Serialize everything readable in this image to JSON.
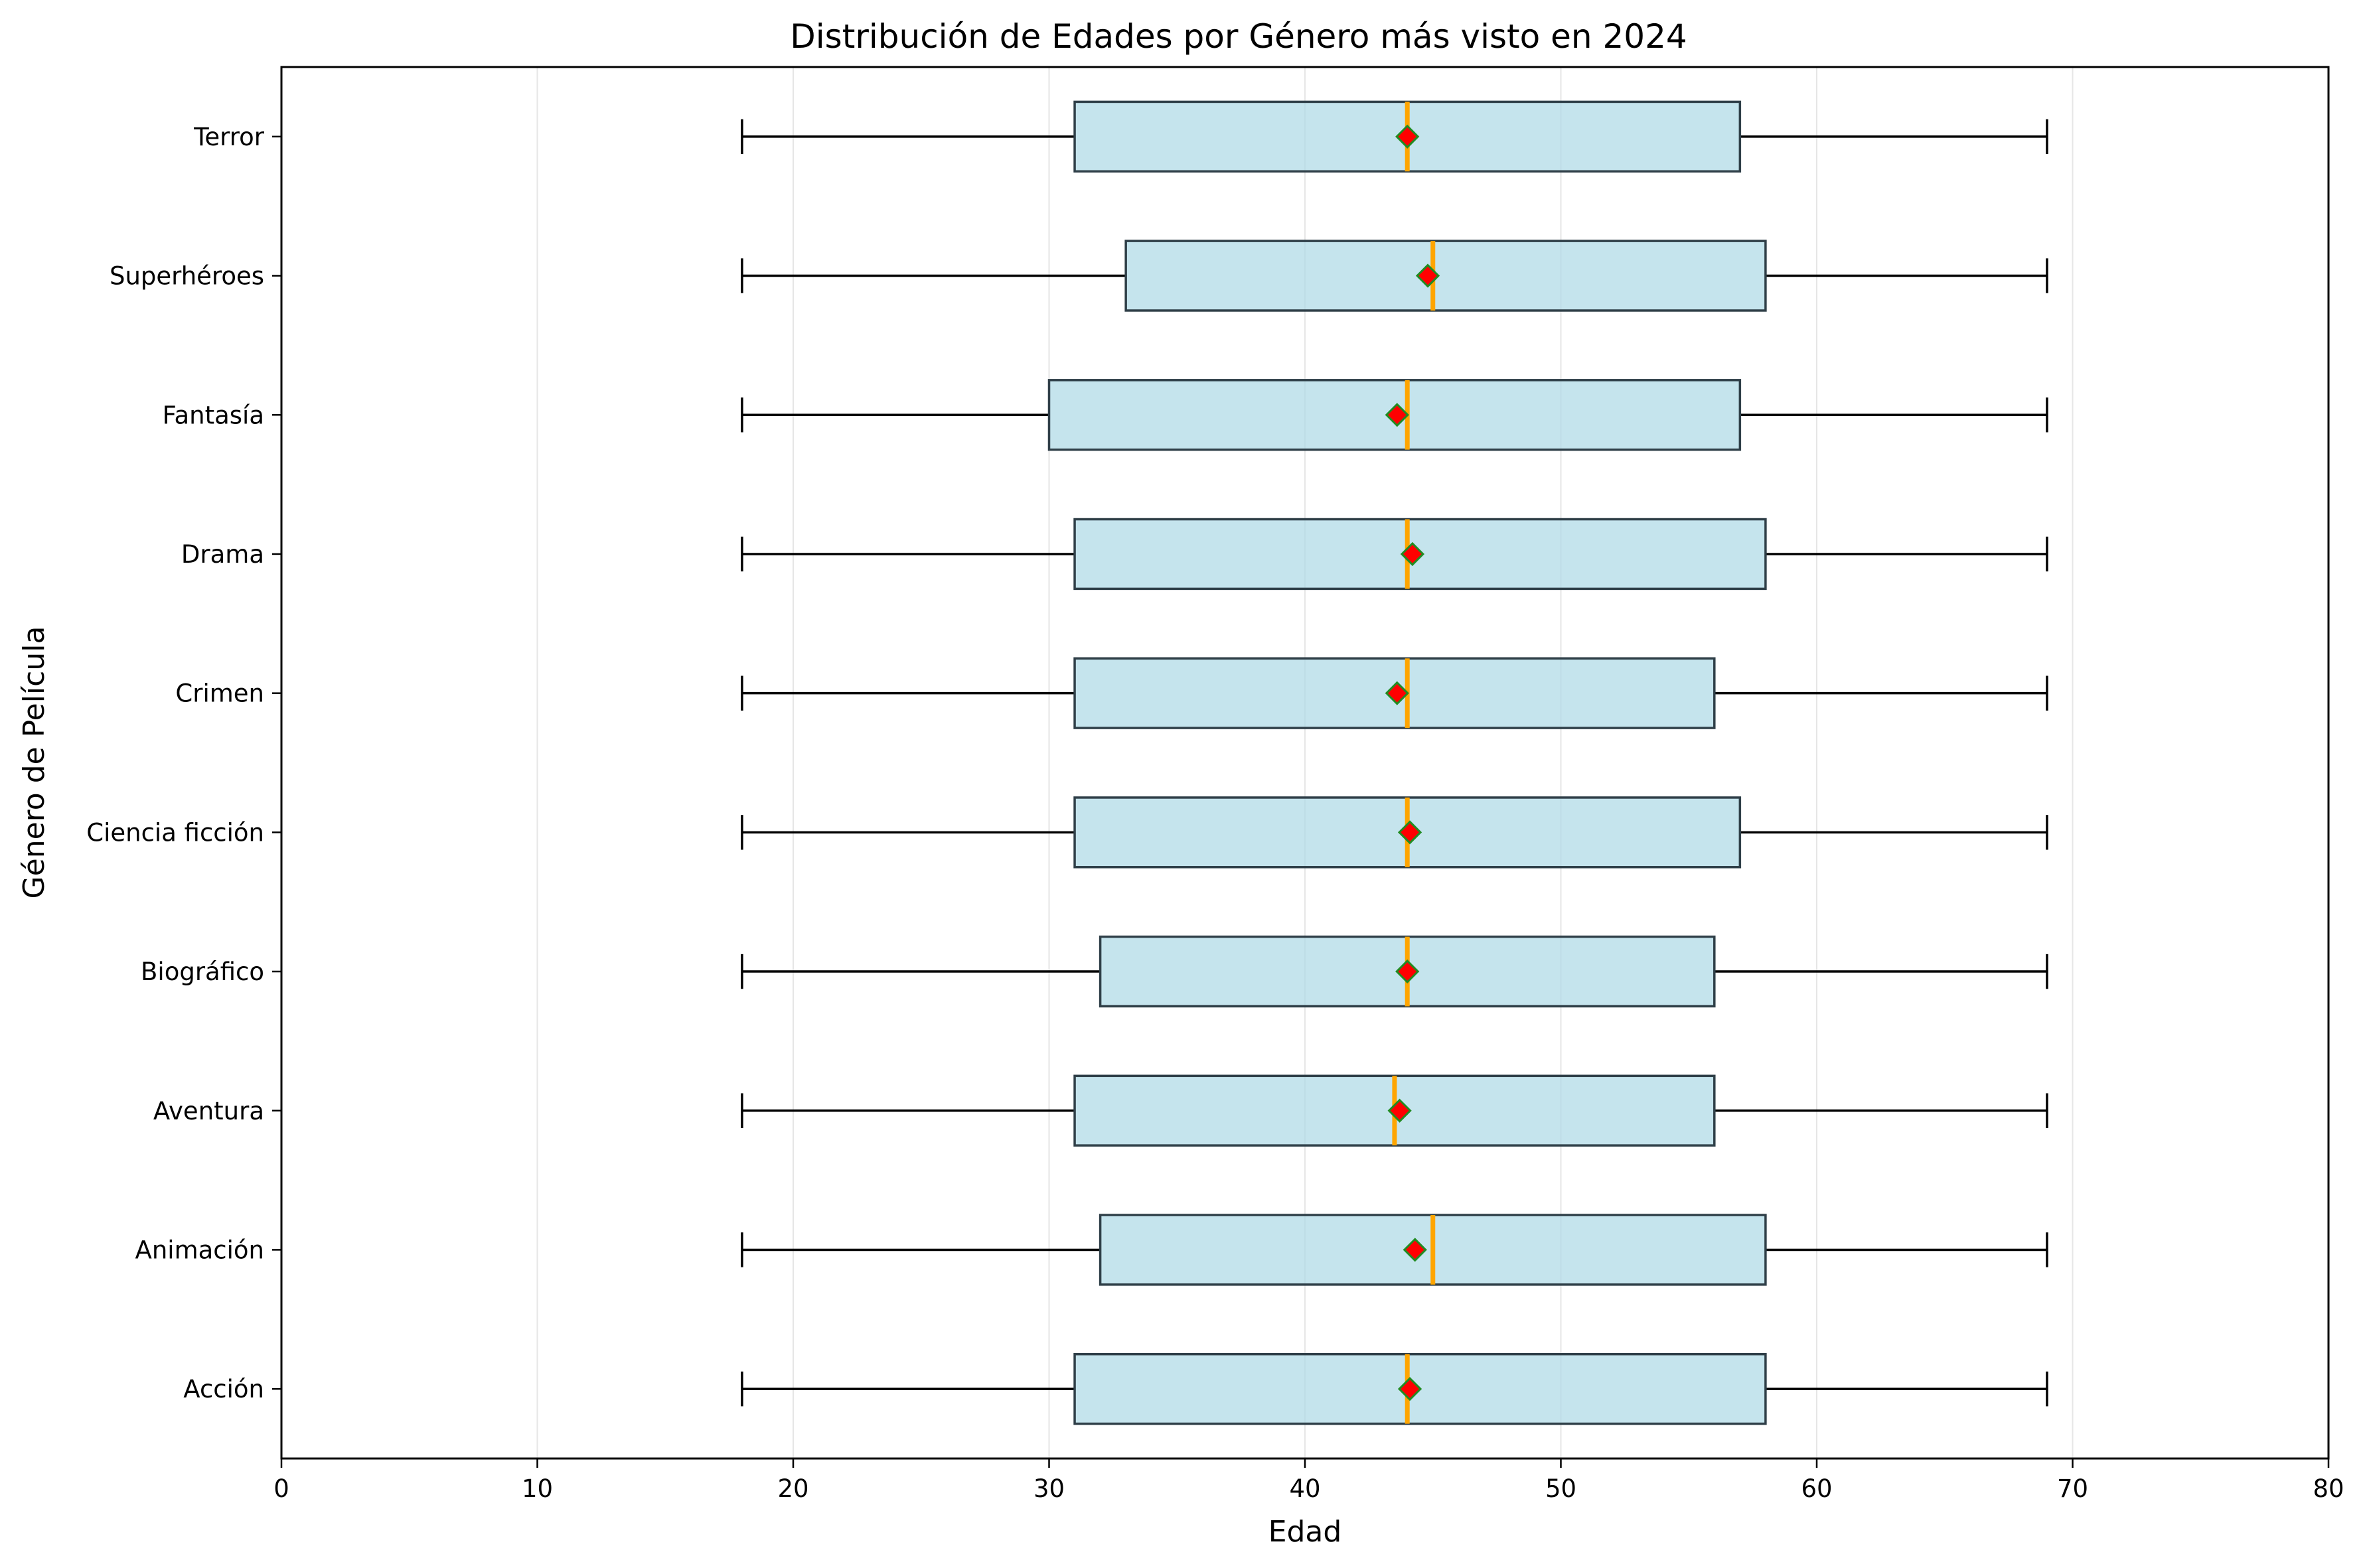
{
  "chart_data": {
    "type": "boxplot",
    "orientation": "horizontal",
    "title": "Distribución de Edades por Género más visto en 2024",
    "xlabel": "Edad",
    "ylabel": "Género de Película",
    "xlim": [
      0,
      80
    ],
    "xticks": [
      0,
      10,
      20,
      30,
      40,
      50,
      60,
      70,
      80
    ],
    "grid": "vertical",
    "colors": {
      "box_fill": "#add8e6",
      "box_edge": "#2f3f48",
      "median": "#ffa500",
      "mean_marker": "#ff0000",
      "mean_marker_edge": "#228b22",
      "whisker": "#000000",
      "grid": "#e6e6e6"
    },
    "categories": [
      "Acción",
      "Animación",
      "Aventura",
      "Biográfico",
      "Ciencia ficción",
      "Crimen",
      "Drama",
      "Fantasía",
      "Superhéroes",
      "Terror"
    ],
    "series": [
      {
        "category": "Acción",
        "min": 18,
        "q1": 31,
        "median": 44,
        "q3": 58,
        "max": 69,
        "mean": 44.1
      },
      {
        "category": "Animación",
        "min": 18,
        "q1": 32,
        "median": 45,
        "q3": 58,
        "max": 69,
        "mean": 44.3
      },
      {
        "category": "Aventura",
        "min": 18,
        "q1": 31,
        "median": 43.5,
        "q3": 56,
        "max": 69,
        "mean": 43.7
      },
      {
        "category": "Biográfico",
        "min": 18,
        "q1": 32,
        "median": 44,
        "q3": 56,
        "max": 69,
        "mean": 44.0
      },
      {
        "category": "Ciencia ficción",
        "min": 18,
        "q1": 31,
        "median": 44,
        "q3": 57,
        "max": 69,
        "mean": 44.1
      },
      {
        "category": "Crimen",
        "min": 18,
        "q1": 31,
        "median": 44,
        "q3": 56,
        "max": 69,
        "mean": 43.6
      },
      {
        "category": "Drama",
        "min": 18,
        "q1": 31,
        "median": 44,
        "q3": 58,
        "max": 69,
        "mean": 44.2
      },
      {
        "category": "Fantasía",
        "min": 18,
        "q1": 30,
        "median": 44,
        "q3": 57,
        "max": 69,
        "mean": 43.6
      },
      {
        "category": "Superhéroes",
        "min": 18,
        "q1": 33,
        "median": 45,
        "q3": 58,
        "max": 69,
        "mean": 44.8
      },
      {
        "category": "Terror",
        "min": 18,
        "q1": 31,
        "median": 44,
        "q3": 57,
        "max": 69,
        "mean": 44.0
      }
    ]
  }
}
